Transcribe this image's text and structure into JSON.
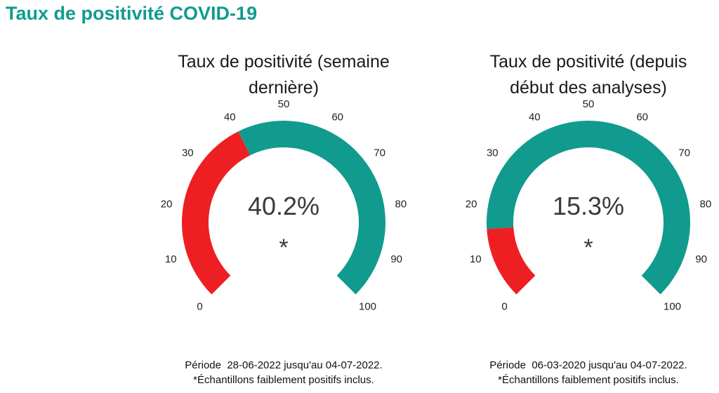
{
  "page": {
    "title": "Taux de positivité COVID-19"
  },
  "colors": {
    "title": "#109b8e",
    "low": "#ee1f23",
    "high": "#109b8e"
  },
  "gauges": [
    {
      "title_line1": "Taux de positivité (semaine",
      "title_line2": "dernière)",
      "value_label": "40.2%",
      "asterisk": "*",
      "period_prefix": "Période",
      "period_range": "28-06-2022 jusqu'au 04-07-2022.",
      "note": "*Échantillons faiblement positifs inclus."
    },
    {
      "title_line1": "Taux de positivité (depuis",
      "title_line2": "début des analyses)",
      "value_label": "15.3%",
      "asterisk": "*",
      "period_prefix": "Période",
      "period_range": "06-03-2020 jusqu'au 04-07-2022.",
      "note": "*Échantillons faiblement positifs inclus."
    }
  ],
  "chart_data": [
    {
      "type": "gauge",
      "title": "Taux de positivité (semaine dernière)",
      "range": [
        0,
        100
      ],
      "ticks": [
        "0",
        "10",
        "20",
        "30",
        "40",
        "50",
        "60",
        "70",
        "80",
        "90",
        "100"
      ],
      "value": 40.2,
      "value_label": "40.2%"
    },
    {
      "type": "gauge",
      "title": "Taux de positivité (depuis début des analyses)",
      "range": [
        0,
        100
      ],
      "ticks": [
        "0",
        "10",
        "20",
        "30",
        "40",
        "50",
        "60",
        "70",
        "80",
        "90",
        "100"
      ],
      "value": 15.3,
      "value_label": "15.3%"
    }
  ]
}
